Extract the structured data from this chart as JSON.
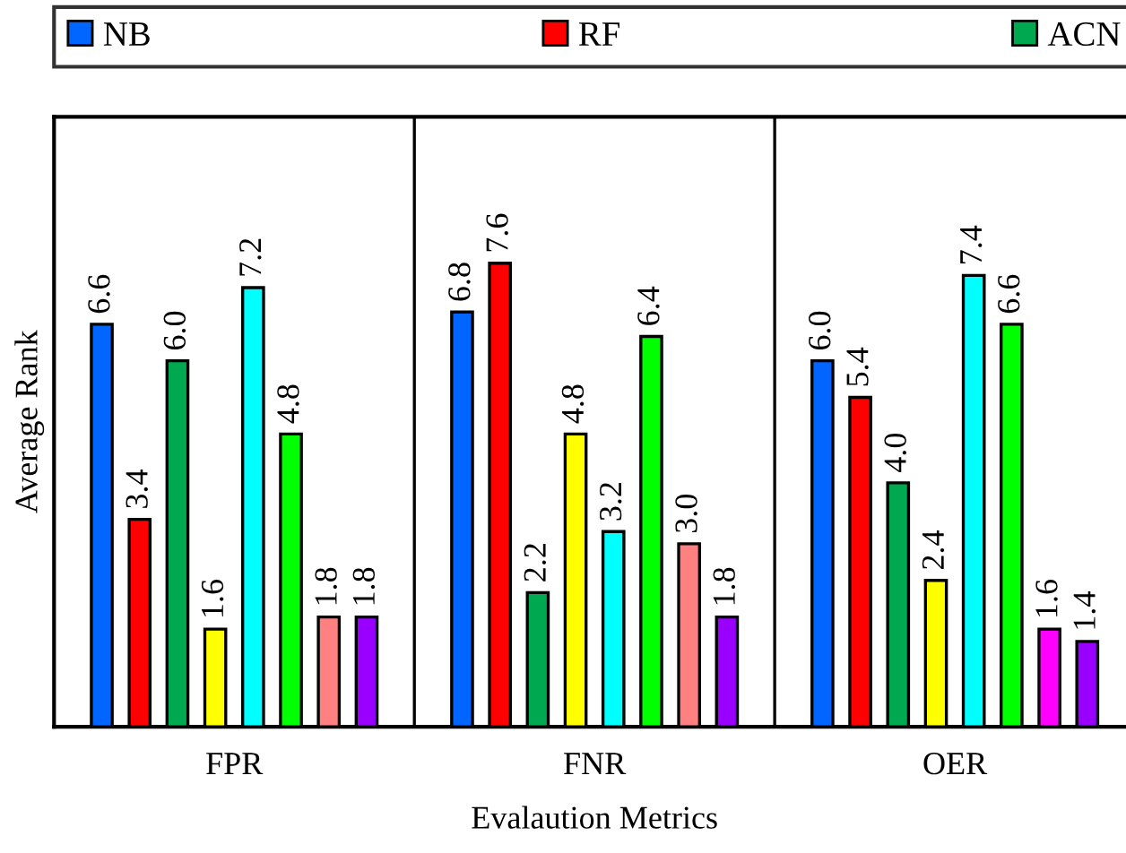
{
  "chart_data": {
    "type": "bar",
    "xlabel": "Evalaution Metrics",
    "ylabel": "Average Rank",
    "categories": [
      "FPR",
      "FNR",
      "OER"
    ],
    "series": [
      {
        "name": "NB",
        "color": "#0066ff",
        "values": [
          6.6,
          6.8,
          6.0
        ],
        "value_labels": [
          "6.6",
          "6.8",
          "6.0"
        ]
      },
      {
        "name": "RF",
        "color": "#ff0000",
        "values": [
          3.4,
          7.6,
          5.4
        ],
        "value_labels": [
          "3.4",
          "7.6",
          "5.4"
        ]
      },
      {
        "name": "ACN",
        "color": "#00a850",
        "values": [
          6.0,
          2.2,
          4.0
        ],
        "value_labels": [
          "6.0",
          "2.2",
          "4.0"
        ]
      },
      {
        "color": "#ffff00",
        "values": [
          1.6,
          4.8,
          2.4
        ],
        "value_labels": [
          "1.6",
          "4.8",
          "2.4"
        ]
      },
      {
        "color": "#00ffff",
        "values": [
          7.2,
          3.2,
          7.4
        ],
        "value_labels": [
          "7.2",
          "3.2",
          "7.4"
        ]
      },
      {
        "color": "#00ff00",
        "values": [
          4.8,
          6.4,
          6.6
        ],
        "value_labels": [
          "4.8",
          "6.4",
          "6.6"
        ]
      },
      {
        "colors": [
          "#ff8080",
          "#ff8080",
          "#ff00ff"
        ],
        "values": [
          1.8,
          3.0,
          1.6
        ],
        "value_labels": [
          "1.8",
          "3.0",
          "1.6"
        ]
      },
      {
        "color": "#9900ff",
        "values": [
          1.8,
          1.8,
          1.4
        ],
        "value_labels": [
          "1.8",
          "1.8",
          "1.4"
        ]
      }
    ],
    "ylim": [
      0,
      10
    ],
    "tick_labels": "x",
    "legend": "top"
  }
}
